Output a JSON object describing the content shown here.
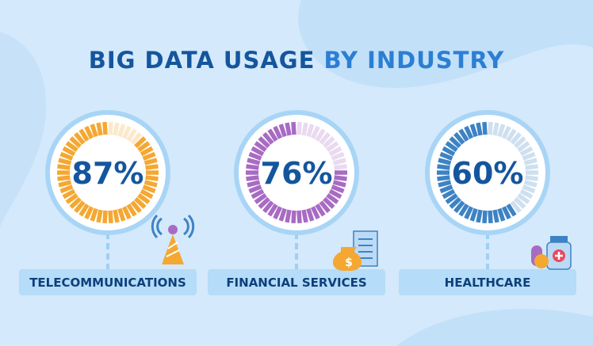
{
  "chart_data": {
    "type": "radial-gauge",
    "title": "BIG DATA USAGE",
    "title_highlight": "BY INDUSTRY",
    "title_color": "#14569e",
    "title_highlight_color": "#2b7fd3",
    "categories": [
      "TELECOMMUNICATIONS",
      "FINANCIAL SERVICES",
      "HEALTHCARE"
    ],
    "values": [
      87,
      76,
      60
    ],
    "value_labels": [
      "87%",
      "76%",
      "60%"
    ],
    "colors": [
      "#f4a832",
      "#a86bc3",
      "#3d83c4"
    ],
    "ylim": [
      0,
      100
    ]
  }
}
